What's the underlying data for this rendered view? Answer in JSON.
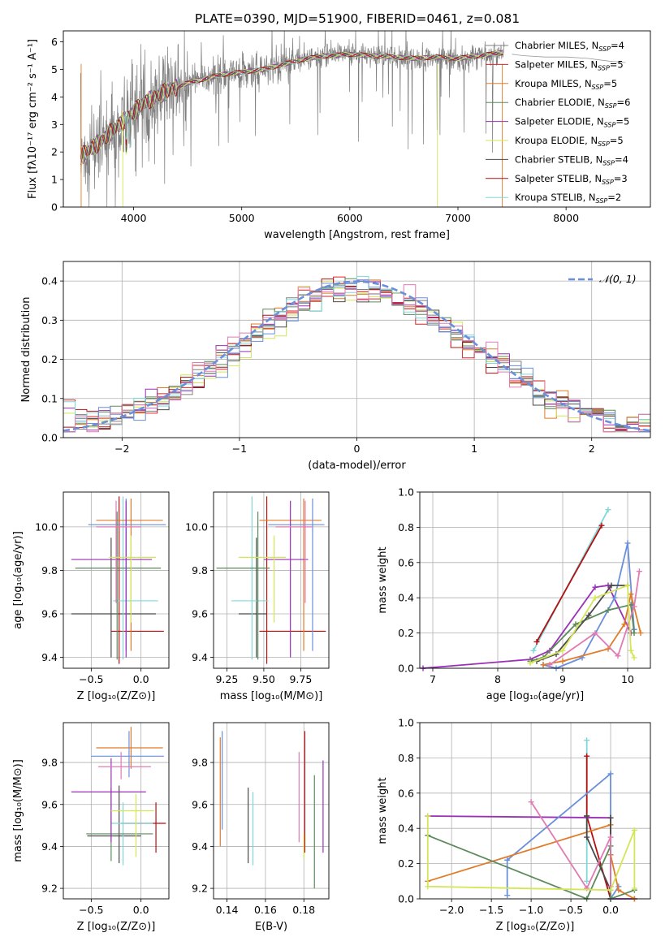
{
  "title": "PLATE=0390, MJD=51900, FIBERID=0461, z=0.081",
  "colors": {
    "chabrier_miles": "#808080",
    "salpeter_miles": "#d62728",
    "kroupa_miles": "#e07b28",
    "chabrier_elodie": "#5b8a5b",
    "salpeter_elodie": "#9b30b6",
    "kroupa_elodie": "#d4e655",
    "chabrier_stelib": "#4a4a4a",
    "salpeter_stelib": "#b41010",
    "kroupa_stelib": "#7fd8d8",
    "blue": "#6a8fdb",
    "pink": "#e07bb3"
  },
  "chart_data": [
    {
      "id": "spectrum",
      "type": "line",
      "title": "PLATE=0390, MJD=51900, FIBERID=0461, z=0.081",
      "xlabel": "wavelength [Angstrom, rest frame]",
      "ylabel": "Flux [fλ10⁻¹⁷ erg cm⁻² s⁻¹ A⁻¹]",
      "xlim": [
        3350,
        8780
      ],
      "ylim": [
        0,
        6.4
      ],
      "xticks": [
        4000,
        5000,
        6000,
        7000,
        8000
      ],
      "yticks": [
        0,
        1,
        2,
        3,
        4,
        5,
        6
      ],
      "legend": {
        "position": "top-right",
        "entries": [
          {
            "label": "Chabrier MILES, N",
            "sub": "SSP",
            "suffix": "=4",
            "color": "#808080"
          },
          {
            "label": "Salpeter MILES, N",
            "sub": "SSP",
            "suffix": "=5",
            "color": "#d62728"
          },
          {
            "label": "Kroupa MILES, N",
            "sub": "SSP",
            "suffix": "=5",
            "color": "#e07b28"
          },
          {
            "label": "Chabrier ELODIE, N",
            "sub": "SSP",
            "suffix": "=6",
            "color": "#5b8a5b"
          },
          {
            "label": "Salpeter ELODIE, N",
            "sub": "SSP",
            "suffix": "=5",
            "color": "#9b30b6"
          },
          {
            "label": "Kroupa ELODIE, N",
            "sub": "SSP",
            "suffix": "=5",
            "color": "#d4e655"
          },
          {
            "label": "Chabrier STELIB, N",
            "sub": "SSP",
            "suffix": "=4",
            "color": "#4a4a4a"
          },
          {
            "label": "Salpeter STELIB, N",
            "sub": "SSP",
            "suffix": "=3",
            "color": "#b41010"
          },
          {
            "label": "Kroupa STELIB, N",
            "sub": "SSP",
            "suffix": "=2",
            "color": "#7fd8d8"
          }
        ]
      },
      "model_trend": {
        "x": [
          3500,
          3700,
          3900,
          4100,
          4300,
          4500,
          4800,
          5000,
          5200,
          5400,
          5600,
          5800,
          6000,
          6200,
          6400,
          6600,
          6800,
          7000,
          7200,
          7400
        ],
        "y": [
          1.8,
          2.4,
          3.1,
          3.8,
          4.2,
          4.5,
          4.8,
          4.9,
          5.0,
          5.2,
          5.4,
          5.5,
          5.55,
          5.5,
          5.45,
          5.4,
          5.45,
          5.4,
          5.5,
          5.6
        ]
      },
      "legend_tail": {
        "x": [
          7500,
          7600,
          7800,
          8000,
          8200,
          8400,
          8550
        ],
        "y": [
          5.55,
          5.5,
          5.45,
          5.45,
          5.4,
          5.3,
          5.25
        ]
      },
      "grid": false
    },
    {
      "id": "residuals",
      "type": "histogram",
      "xlabel": "(data-model)/error",
      "ylabel": "Normed distribution",
      "xlim": [
        -2.5,
        2.5
      ],
      "ylim": [
        0,
        0.45
      ],
      "xticks": [
        -2,
        -1,
        0,
        1,
        2
      ],
      "yticks": [
        0.0,
        0.1,
        0.2,
        0.3,
        0.4
      ],
      "bin_width": 0.1,
      "legend": {
        "position": "top-right",
        "entries": [
          {
            "label": "𝒩(0, 1)",
            "color": "#6a8fdb"
          }
        ]
      },
      "grid": true
    },
    {
      "id": "age-vs-Z",
      "type": "errorbar",
      "xlabel": "Z [log₁₀(Z/Z⊙)]",
      "ylabel": "age  [log₁₀(age/yr)]",
      "xlim": [
        -0.78,
        0.28
      ],
      "ylim": [
        9.35,
        10.16
      ],
      "xticks": [
        -0.5,
        0.0
      ],
      "yticks": [
        9.4,
        9.6,
        9.8,
        10.0
      ],
      "points": [
        {
          "x": -0.3,
          "y": 9.6,
          "xerr": [
            0.4,
            0.45
          ],
          "yerr": [
            0.2,
            0.35
          ],
          "color": "#4a4a4a"
        },
        {
          "x": -0.22,
          "y": 9.52,
          "xerr": [
            0.08,
            0.45
          ],
          "yerr": [
            0.15,
            0.62
          ],
          "color": "#b41010"
        },
        {
          "x": -0.18,
          "y": 9.66,
          "xerr": [
            0.1,
            0.35
          ],
          "yerr": [
            0.27,
            0.48
          ],
          "color": "#7fd8d8"
        },
        {
          "x": -0.1,
          "y": 10.03,
          "xerr": [
            0.35,
            0.32
          ],
          "yerr": [
            0.6,
            0.1
          ],
          "color": "#e07b28"
        },
        {
          "x": -0.15,
          "y": 10.01,
          "xerr": [
            0.38,
            0.4
          ],
          "yerr": [
            0.58,
            0.12
          ],
          "color": "#6a8fdb"
        },
        {
          "x": -0.24,
          "y": 9.81,
          "xerr": [
            0.42,
            0.44
          ],
          "yerr": [
            0.42,
            0.26
          ],
          "color": "#5b8a5b"
        },
        {
          "x": -0.15,
          "y": 9.85,
          "xerr": [
            0.55,
            0.26
          ],
          "yerr": [
            0.45,
            0.27
          ],
          "color": "#9b30b6"
        },
        {
          "x": -0.25,
          "y": 10.0,
          "xerr": [
            0.2,
            0.25
          ],
          "yerr": [
            0.35,
            0.12
          ],
          "color": "#e07bb3"
        },
        {
          "x": -0.1,
          "y": 9.86,
          "xerr": [
            0.22,
            0.25
          ],
          "yerr": [
            0.3,
            0.1
          ],
          "color": "#d4e655"
        }
      ],
      "grid": true
    },
    {
      "id": "age-vs-mass",
      "type": "errorbar",
      "xlabel": "mass [log₁₀(M/M⊙)]",
      "ylabel": "",
      "xlim": [
        9.16,
        9.94
      ],
      "ylim": [
        9.35,
        10.16
      ],
      "xticks": [
        9.25,
        9.5,
        9.75
      ],
      "yticks": [
        9.4,
        9.6,
        9.8,
        10.0
      ],
      "points": [
        {
          "x": 9.45,
          "y": 9.6,
          "xerr": [
            0.12,
            0.07
          ],
          "yerr": [
            0.2,
            0.35
          ],
          "color": "#4a4a4a"
        },
        {
          "x": 9.52,
          "y": 9.52,
          "xerr": [
            0.05,
            0.4
          ],
          "yerr": [
            0.15,
            0.62
          ],
          "color": "#b41010"
        },
        {
          "x": 9.42,
          "y": 9.66,
          "xerr": [
            0.14,
            0.11
          ],
          "yerr": [
            0.27,
            0.48
          ],
          "color": "#7fd8d8"
        },
        {
          "x": 9.77,
          "y": 10.03,
          "xerr": [
            0.3,
            0.12
          ],
          "yerr": [
            0.6,
            0.1
          ],
          "color": "#e07b28"
        },
        {
          "x": 9.83,
          "y": 10.01,
          "xerr": [
            0.3,
            0.08
          ],
          "yerr": [
            0.58,
            0.12
          ],
          "color": "#6a8fdb"
        },
        {
          "x": 9.46,
          "y": 9.81,
          "xerr": [
            0.28,
            0.08
          ],
          "yerr": [
            0.42,
            0.26
          ],
          "color": "#5b8a5b"
        },
        {
          "x": 9.68,
          "y": 9.85,
          "xerr": [
            0.18,
            0.12
          ],
          "yerr": [
            0.45,
            0.27
          ],
          "color": "#9b30b6"
        },
        {
          "x": 9.78,
          "y": 10.0,
          "xerr": [
            0.2,
            0.05
          ],
          "yerr": [
            0.35,
            0.12
          ],
          "color": "#e07bb3"
        },
        {
          "x": 9.57,
          "y": 9.86,
          "xerr": [
            0.24,
            0.08
          ],
          "yerr": [
            0.3,
            0.1
          ],
          "color": "#d4e655"
        }
      ],
      "grid": true
    },
    {
      "id": "mass-weight-vs-age",
      "type": "line",
      "xlabel": "age  [log₁₀(age/yr)]",
      "ylabel": "mass weight",
      "xlim": [
        6.8,
        10.35
      ],
      "ylim": [
        0,
        1.0
      ],
      "xticks": [
        7,
        8,
        9,
        10
      ],
      "yticks": [
        0.0,
        0.2,
        0.4,
        0.6,
        0.8,
        1.0
      ],
      "series": [
        {
          "color": "#7fd8d8",
          "x": [
            8.55,
            9.7
          ],
          "y": [
            0.1,
            0.9
          ]
        },
        {
          "color": "#b41010",
          "x": [
            8.6,
            9.6
          ],
          "y": [
            0.15,
            0.81
          ]
        },
        {
          "color": "#9b30b6",
          "x": [
            6.85,
            8.5,
            8.8,
            9.5,
            9.7,
            10.05
          ],
          "y": [
            0.0,
            0.05,
            0.1,
            0.46,
            0.47,
            0.2
          ]
        },
        {
          "color": "#6a8fdb",
          "x": [
            8.7,
            8.9,
            9.3,
            9.8,
            10.0,
            10.1
          ],
          "y": [
            0.02,
            0.0,
            0.06,
            0.4,
            0.71,
            0.22
          ]
        },
        {
          "color": "#e07b28",
          "x": [
            8.7,
            9.0,
            9.7,
            9.95,
            10.05,
            10.2
          ],
          "y": [
            0.02,
            0.04,
            0.11,
            0.25,
            0.42,
            0.2
          ]
        },
        {
          "color": "#5b8a5b",
          "x": [
            8.5,
            8.7,
            9.2,
            9.7,
            10.05,
            10.1
          ],
          "y": [
            0.04,
            0.06,
            0.25,
            0.33,
            0.36,
            0.2
          ]
        },
        {
          "color": "#4a4a4a",
          "x": [
            8.6,
            8.9,
            9.4,
            9.75,
            10.0
          ],
          "y": [
            0.04,
            0.08,
            0.3,
            0.47,
            0.47
          ]
        },
        {
          "color": "#e07bb3",
          "x": [
            8.8,
            9.5,
            9.85,
            10.1,
            10.18
          ],
          "y": [
            0.02,
            0.2,
            0.07,
            0.35,
            0.55
          ]
        },
        {
          "color": "#d4e655",
          "x": [
            8.5,
            9.0,
            9.5,
            10.0,
            10.05,
            10.1
          ],
          "y": [
            0.03,
            0.1,
            0.4,
            0.47,
            0.1,
            0.06
          ]
        }
      ],
      "grid": true
    },
    {
      "id": "mass-vs-Z",
      "type": "errorbar",
      "xlabel": "Z [log₁₀(Z/Z⊙)]",
      "ylabel": "mass [log₁₀(M/M⊙)]",
      "xlim": [
        -0.78,
        0.28
      ],
      "ylim": [
        9.15,
        9.99
      ],
      "xticks": [
        -0.5,
        0.0
      ],
      "yticks": [
        9.2,
        9.4,
        9.6,
        9.8
      ],
      "points": [
        {
          "x": -0.22,
          "y": 9.45,
          "xerr": [
            0.32,
            0.22
          ],
          "yerr": [
            0.13,
            0.24
          ],
          "color": "#4a4a4a"
        },
        {
          "x": 0.15,
          "y": 9.51,
          "xerr": [
            0.35,
            0.1
          ],
          "yerr": [
            0.14,
            0.1
          ],
          "color": "#b41010"
        },
        {
          "x": -0.18,
          "y": 9.51,
          "xerr": [
            0.12,
            0.3
          ],
          "yerr": [
            0.2,
            0.1
          ],
          "color": "#7fd8d8"
        },
        {
          "x": -0.1,
          "y": 9.87,
          "xerr": [
            0.35,
            0.32
          ],
          "yerr": [
            0.1,
            0.1
          ],
          "color": "#e07b28"
        },
        {
          "x": -0.12,
          "y": 9.83,
          "xerr": [
            0.38,
            0.35
          ],
          "yerr": [
            0.1,
            0.12
          ],
          "color": "#6a8fdb"
        },
        {
          "x": -0.3,
          "y": 9.46,
          "xerr": [
            0.25,
            0.42
          ],
          "yerr": [
            0.13,
            0.22
          ],
          "color": "#5b8a5b"
        },
        {
          "x": -0.3,
          "y": 9.66,
          "xerr": [
            0.4,
            0.35
          ],
          "yerr": [
            0.24,
            0.16
          ],
          "color": "#9b30b6"
        },
        {
          "x": -0.2,
          "y": 9.78,
          "xerr": [
            0.23,
            0.3
          ],
          "yerr": [
            0.06,
            0.07
          ],
          "color": "#e07bb3"
        },
        {
          "x": -0.05,
          "y": 9.57,
          "xerr": [
            0.25,
            0.18
          ],
          "yerr": [
            0.22,
            0.08
          ],
          "color": "#d4e655"
        }
      ],
      "grid": true
    },
    {
      "id": "mass-vs-ebv",
      "type": "errorbar",
      "xlabel": "E(B-V)",
      "ylabel": "",
      "xlim": [
        0.133,
        0.193
      ],
      "ylim": [
        9.15,
        9.99
      ],
      "xticks": [
        0.14,
        0.16,
        0.18
      ],
      "yticks": [
        9.2,
        9.4,
        9.6,
        9.8
      ],
      "points": [
        {
          "x": 0.1365,
          "y": 9.66,
          "yerr": [
            0.26,
            0.26
          ],
          "color": "#e07b28"
        },
        {
          "x": 0.1375,
          "y": 9.7,
          "yerr": [
            0.22,
            0.25
          ],
          "color": "#6a8fdb"
        },
        {
          "x": 0.151,
          "y": 9.5,
          "yerr": [
            0.18,
            0.18
          ],
          "color": "#4a4a4a"
        },
        {
          "x": 0.1535,
          "y": 9.48,
          "yerr": [
            0.17,
            0.18
          ],
          "color": "#7fd8d8"
        },
        {
          "x": 0.1775,
          "y": 9.62,
          "yerr": [
            0.2,
            0.23
          ],
          "color": "#e07bb3"
        },
        {
          "x": 0.18,
          "y": 9.4,
          "yerr": [
            0.06,
            0.06
          ],
          "color": "#d4e655"
        },
        {
          "x": 0.1805,
          "y": 9.62,
          "yerr": [
            0.25,
            0.33
          ],
          "color": "#b41010"
        },
        {
          "x": 0.1855,
          "y": 9.44,
          "yerr": [
            0.24,
            0.3
          ],
          "color": "#5b8a5b"
        },
        {
          "x": 0.19,
          "y": 9.57,
          "yerr": [
            0.2,
            0.24
          ],
          "color": "#9b30b6"
        }
      ],
      "grid": true
    },
    {
      "id": "mass-weight-vs-Z",
      "type": "line",
      "xlabel": "Z [log₁₀(Z/Z⊙)]",
      "ylabel": "mass weight",
      "xlim": [
        -2.4,
        0.5
      ],
      "ylim": [
        0,
        1.0
      ],
      "xticks": [
        -2.0,
        -1.5,
        -1.0,
        -0.5,
        0.0
      ],
      "yticks": [
        0.0,
        0.2,
        0.4,
        0.6,
        0.8,
        1.0
      ],
      "series": [
        {
          "color": "#7fd8d8",
          "x": [
            -0.3,
            -0.3
          ],
          "y": [
            0.9,
            0.1
          ]
        },
        {
          "color": "#b41010",
          "x": [
            -0.3,
            -0.3,
            0.0
          ],
          "y": [
            0.81,
            0.47,
            0.0
          ]
        },
        {
          "color": "#9b30b6",
          "x": [
            -2.3,
            0.0,
            0.0,
            0.3
          ],
          "y": [
            0.47,
            0.46,
            0.0,
            0.0
          ]
        },
        {
          "color": "#6a8fdb",
          "x": [
            -1.3,
            -1.3,
            0.0,
            0.0,
            0.1
          ],
          "y": [
            0.02,
            0.22,
            0.71,
            0.0,
            0.07
          ]
        },
        {
          "color": "#e07b28",
          "x": [
            -2.3,
            0.0,
            0.0,
            0.1,
            0.3
          ],
          "y": [
            0.1,
            0.42,
            0.25,
            0.05,
            0.0
          ]
        },
        {
          "color": "#5b8a5b",
          "x": [
            -2.3,
            -0.3,
            0.0,
            0.0,
            0.3
          ],
          "y": [
            0.36,
            0.0,
            0.3,
            0.0,
            0.05
          ]
        },
        {
          "color": "#4a4a4a",
          "x": [
            -0.3,
            -0.3,
            0.0,
            0.0
          ],
          "y": [
            0.47,
            0.35,
            0.05,
            0.46
          ]
        },
        {
          "color": "#e07bb3",
          "x": [
            -1.0,
            -0.3,
            0.0,
            0.0
          ],
          "y": [
            0.55,
            0.06,
            0.35,
            0.07
          ]
        },
        {
          "color": "#d4e655",
          "x": [
            -2.3,
            -2.3,
            0.0,
            0.3,
            0.3
          ],
          "y": [
            0.47,
            0.07,
            0.05,
            0.39,
            0.06
          ]
        }
      ],
      "grid": true
    }
  ]
}
